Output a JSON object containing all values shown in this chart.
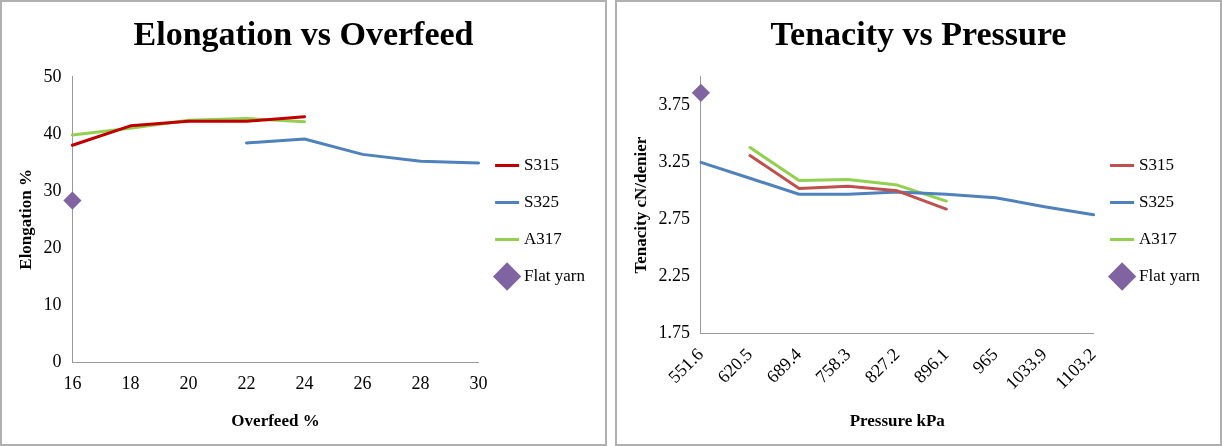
{
  "chart_data": [
    {
      "type": "line",
      "title": "Elongation vs Overfeed",
      "xlabel": "Overfeed %",
      "ylabel": "Elongation %",
      "categories": [
        "16",
        "18",
        "20",
        "22",
        "24",
        "26",
        "28",
        "30"
      ],
      "ylim": [
        0,
        50
      ],
      "yticks": [
        0,
        10,
        20,
        30,
        40,
        50
      ],
      "grid": false,
      "legend": "right",
      "line_style": "solid",
      "series": [
        {
          "name": "S315",
          "color": "#c00000",
          "marker": "none",
          "values": [
            38.0,
            41.4,
            42.2,
            42.2,
            43.0,
            null,
            null,
            null
          ]
        },
        {
          "name": "S325",
          "color": "#4f81bd",
          "marker": "none",
          "values": [
            null,
            null,
            null,
            38.4,
            39.1,
            36.4,
            35.2,
            34.9
          ]
        },
        {
          "name": "A317",
          "color": "#92d050",
          "marker": "none",
          "values": [
            39.8,
            41.0,
            42.4,
            42.7,
            42.1,
            null,
            null,
            null
          ]
        },
        {
          "name": "Flat yarn",
          "type": "scatter",
          "color": "#8064a2",
          "marker": "diamond",
          "values": [
            28.3,
            null,
            null,
            null,
            null,
            null,
            null,
            null
          ]
        }
      ]
    },
    {
      "type": "line",
      "title": "Tenacity vs Pressure",
      "xlabel": "Pressure kPa",
      "ylabel": "Tenacity cN/denier",
      "categories": [
        "551.6",
        "620.5",
        "689.4",
        "758.3",
        "827.2",
        "896.1",
        "965",
        "1033.9",
        "1103.2"
      ],
      "ylim": [
        1.75,
        4.0
      ],
      "yticks": [
        1.75,
        2.25,
        2.75,
        3.25,
        3.75
      ],
      "grid": false,
      "legend": "right",
      "line_style": "solid",
      "series": [
        {
          "name": "S315",
          "color": "#c0504d",
          "marker": "none",
          "values": [
            null,
            3.31,
            3.02,
            3.04,
            3.0,
            2.84,
            null,
            null,
            null
          ]
        },
        {
          "name": "S325",
          "color": "#4f81bd",
          "marker": "none",
          "values": [
            3.25,
            3.11,
            2.97,
            2.97,
            2.99,
            2.97,
            2.94,
            2.86,
            2.79
          ]
        },
        {
          "name": "A317",
          "color": "#92d050",
          "marker": "none",
          "values": [
            null,
            3.38,
            3.09,
            3.1,
            3.05,
            2.91,
            null,
            null,
            null
          ]
        },
        {
          "name": "Flat yarn",
          "type": "scatter",
          "color": "#8064a2",
          "marker": "diamond",
          "values": [
            3.86,
            null,
            null,
            null,
            null,
            null,
            null,
            null,
            null
          ]
        }
      ]
    }
  ]
}
